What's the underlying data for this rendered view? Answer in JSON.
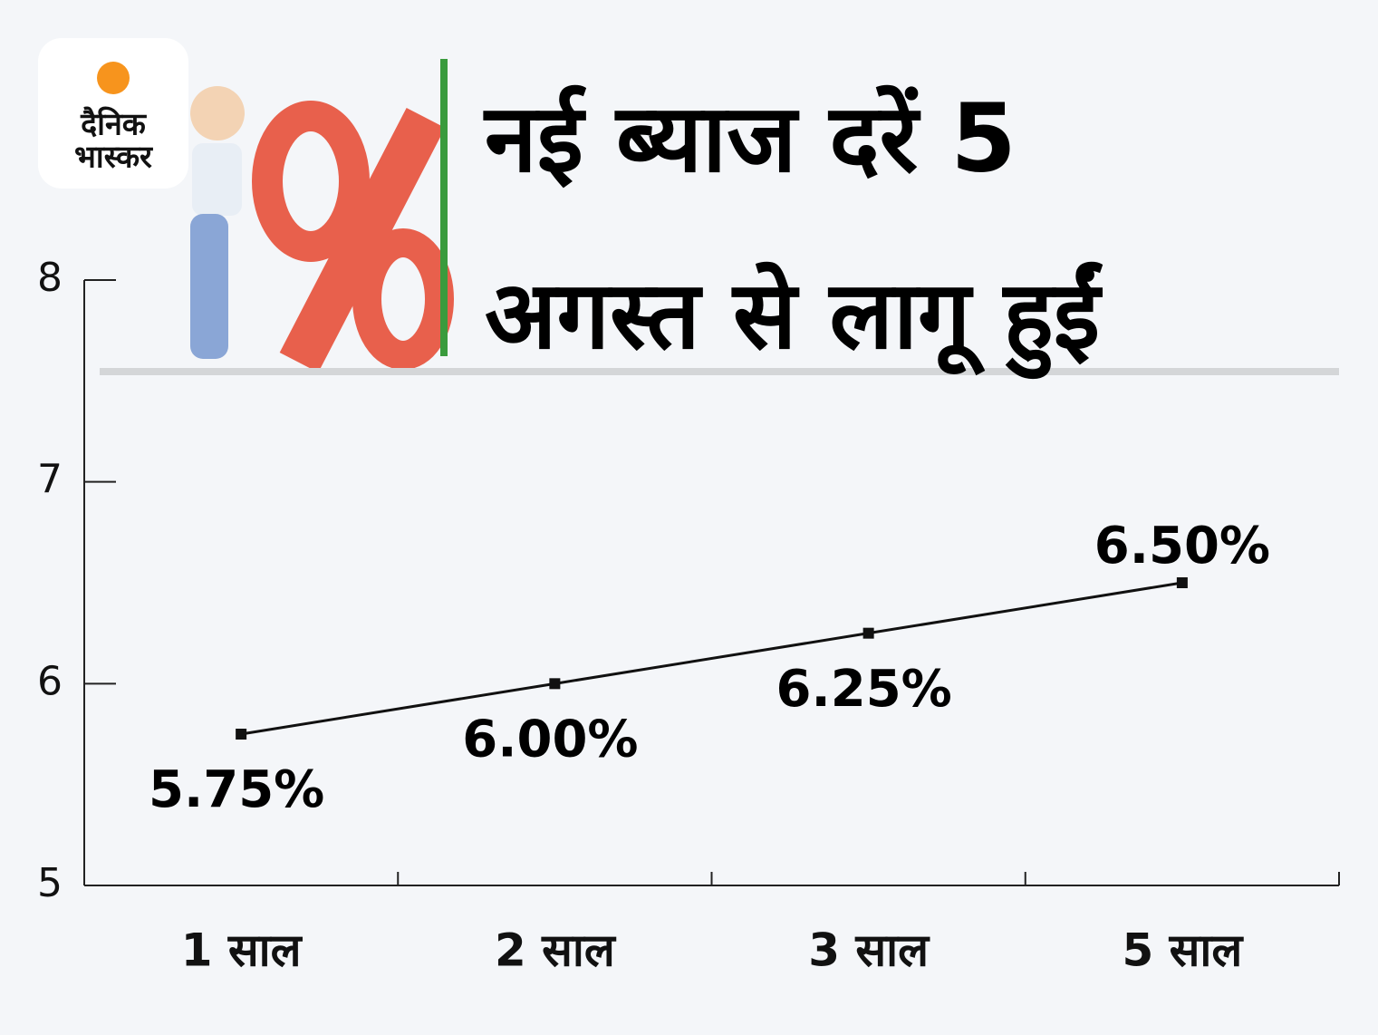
{
  "logo": [
    "दैनिक",
    "भास्कर"
  ],
  "chart_data": {
    "type": "line",
    "title": [
      "नई ब्याज दरें 5",
      "अगस्त से लागू हुईं"
    ],
    "categories": [
      "1 साल",
      "2 साल",
      "3 साल",
      "5 साल"
    ],
    "values": [
      5.75,
      6.0,
      6.25,
      6.5
    ],
    "value_labels": [
      "5.75%",
      "6.00%",
      "6.25%",
      "6.50%"
    ],
    "color": "#111111",
    "ylim": [
      5,
      8
    ],
    "yticks": [
      5,
      6,
      7,
      8
    ]
  }
}
